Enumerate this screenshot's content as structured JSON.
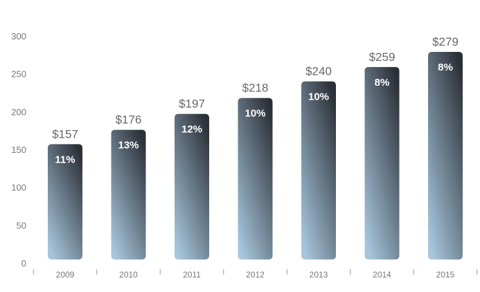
{
  "chart_data": {
    "type": "bar",
    "categories": [
      "2009",
      "2010",
      "2011",
      "2012",
      "2013",
      "2014",
      "2015"
    ],
    "values": [
      157,
      176,
      197,
      218,
      240,
      259,
      279
    ],
    "value_labels": [
      "$157",
      "$176",
      "$197",
      "$218",
      "$240",
      "$259",
      "$279"
    ],
    "percent_labels": [
      "11%",
      "13%",
      "12%",
      "10%",
      "10%",
      "8%",
      "8%"
    ],
    "ylim": [
      0,
      300
    ],
    "yticks": [
      "0",
      "50",
      "100",
      "150",
      "200",
      "250",
      "300"
    ],
    "ytick_values": [
      0,
      50,
      100,
      150,
      200,
      250,
      300
    ],
    "title": "",
    "xlabel": "",
    "ylabel": "",
    "grid": false,
    "colors": {
      "bar_top": "#2b2f36",
      "bar_bottom": "#a7c6dd",
      "value_label": "#666666",
      "percent_label": "#ffffff",
      "tick_label": "#777777",
      "axis": "#9a9a9a"
    }
  }
}
